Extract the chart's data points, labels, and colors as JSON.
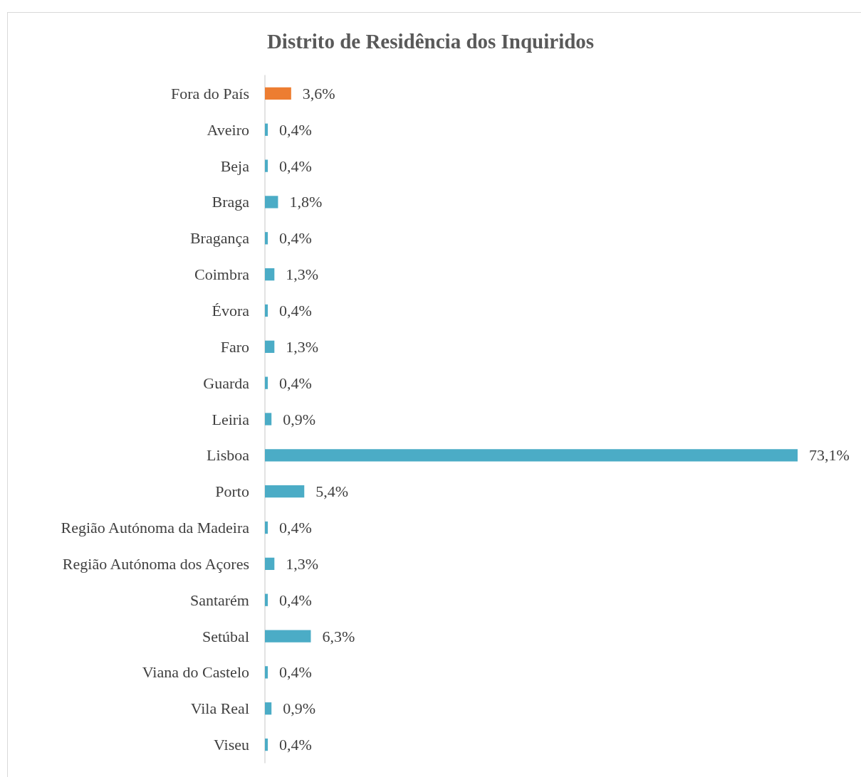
{
  "chart_data": {
    "type": "bar",
    "orientation": "horizontal",
    "title": "Distrito de Residência dos Inquiridos",
    "categories": [
      "Fora do País",
      "Aveiro",
      "Beja",
      "Braga",
      "Bragança",
      "Coimbra",
      "Évora",
      "Faro",
      "Guarda",
      "Leiria",
      "Lisboa",
      "Porto",
      "Região Autónoma da Madeira",
      "Região Autónoma dos Açores",
      "Santarém",
      "Setúbal",
      "Viana do Castelo",
      "Vila Real",
      "Viseu"
    ],
    "values": [
      3.6,
      0.4,
      0.4,
      1.8,
      0.4,
      1.3,
      0.4,
      1.3,
      0.4,
      0.9,
      73.1,
      5.4,
      0.4,
      1.3,
      0.4,
      6.3,
      0.4,
      0.9,
      0.4
    ],
    "value_labels": [
      "3,6%",
      "0,4%",
      "0,4%",
      "1,8%",
      "0,4%",
      "1,3%",
      "0,4%",
      "1,3%",
      "0,4%",
      "0,9%",
      "73,1%",
      "5,4%",
      "0,4%",
      "1,3%",
      "0,4%",
      "6,3%",
      "0,4%",
      "0,9%",
      "0,4%"
    ],
    "colors": [
      "#ed7d31",
      "#4bacc6",
      "#4bacc6",
      "#4bacc6",
      "#4bacc6",
      "#4bacc6",
      "#4bacc6",
      "#4bacc6",
      "#4bacc6",
      "#4bacc6",
      "#4bacc6",
      "#4bacc6",
      "#4bacc6",
      "#4bacc6",
      "#4bacc6",
      "#4bacc6",
      "#4bacc6",
      "#4bacc6",
      "#4bacc6"
    ],
    "grid": false
  }
}
